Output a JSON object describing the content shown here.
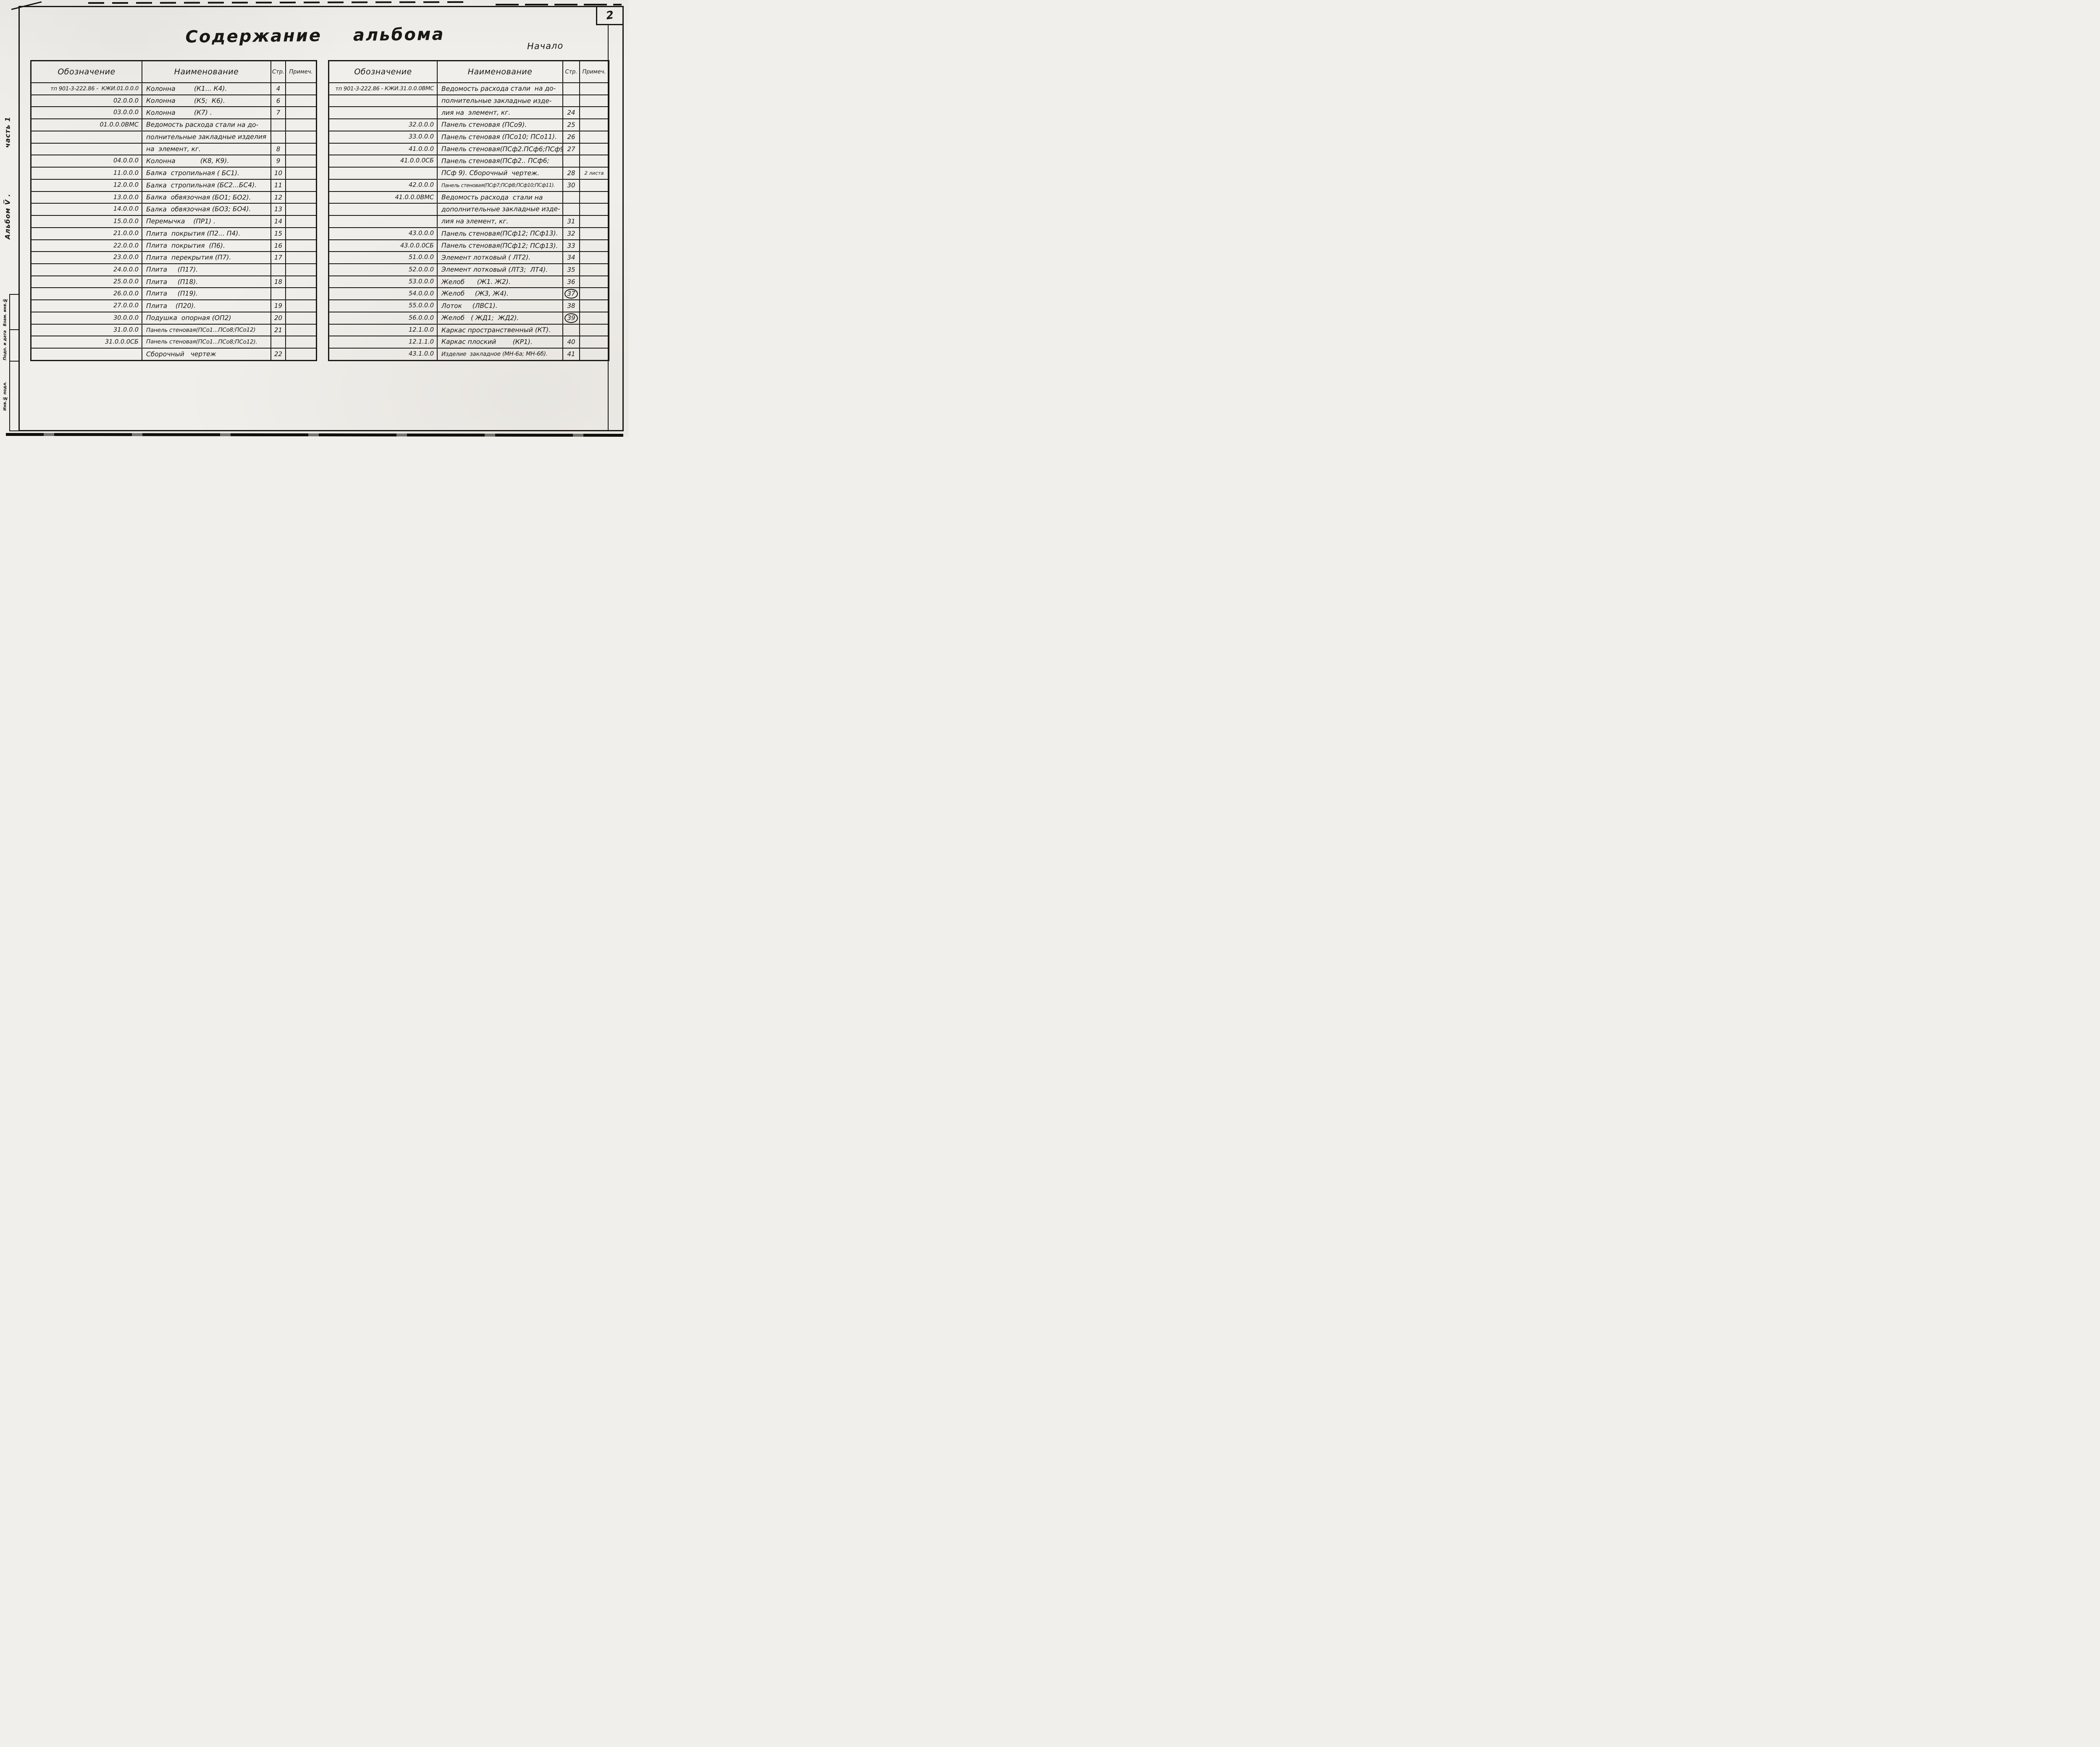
{
  "colors": {
    "ink": "#1b1712",
    "paper": "#f1efeb"
  },
  "page": {
    "corner_number": "2",
    "title": "Содержание альбома",
    "start_label": "Начало"
  },
  "sidebar": {
    "part_label": "часть 1",
    "album_label": "Альбом V̅ .",
    "stamp_labels": [
      "Взам. инв.№",
      "Подп. и дата",
      "Инв.№ подл."
    ]
  },
  "table_headers": {
    "designation": "Обозначение",
    "name": "Наименование",
    "page": "Стр.",
    "note": "Примеч."
  },
  "left_table": {
    "rows": [
      {
        "designation": "тп 901-3-222.86 -  КЖИ.01.0.0.0",
        "name": "Колонна         (К1... К4).",
        "page": "4",
        "note": "",
        "page_circled": false
      },
      {
        "designation": "02.0.0.0",
        "name": "Колонна         (К5;  К6).",
        "page": "6",
        "note": "",
        "page_circled": false
      },
      {
        "designation": "03.0.0.0",
        "name": "Колонна         (К7) .",
        "page": "7",
        "note": "",
        "page_circled": false
      },
      {
        "designation": "01.0.0.0ВМС",
        "name": "Ведомость расхода стали на до-",
        "page": "",
        "note": "",
        "page_circled": false
      },
      {
        "designation": "",
        "name": "полнительные закладные изделия",
        "page": "",
        "note": "",
        "page_circled": false
      },
      {
        "designation": "",
        "name": "на  элемент, кг.",
        "page": "8",
        "note": "",
        "page_circled": false
      },
      {
        "designation": "04.0.0.0",
        "name": "Колонна            (К8, К9).",
        "page": "9",
        "note": "",
        "page_circled": false
      },
      {
        "designation": "11.0.0.0",
        "name": "Балка  стропильная ( БС1).",
        "page": "10",
        "note": "",
        "page_circled": false
      },
      {
        "designation": "12.0.0.0",
        "name": "Балка  стропильная (БС2...БС4).",
        "page": "11",
        "note": "",
        "page_circled": false
      },
      {
        "designation": "13.0.0.0",
        "name": "Балка  обвязочная (БО1; БО2).",
        "page": "12",
        "note": "",
        "page_circled": false
      },
      {
        "designation": "14.0.0.0",
        "name": "Балка  обвязочная (БО3; БО4).",
        "page": "13",
        "note": "",
        "page_circled": false
      },
      {
        "designation": "15.0.0.0",
        "name": "Перемычка    (ПР1) .",
        "page": "14",
        "note": "",
        "page_circled": false
      },
      {
        "designation": "21.0.0.0",
        "name": "Плита  покрытия (П2... П4).",
        "page": "15",
        "note": "",
        "page_circled": false
      },
      {
        "designation": "22.0.0.0",
        "name": "Плита  покрытия  (П6).",
        "page": "16",
        "note": "",
        "page_circled": false
      },
      {
        "designation": "23.0.0.0",
        "name": "Плита  перекрытия (П7).",
        "page": "17",
        "note": "",
        "page_circled": false
      },
      {
        "designation": "24.0.0.0",
        "name": "Плита     (П17).",
        "page": "",
        "note": "",
        "page_circled": false
      },
      {
        "designation": "25.0.0.0",
        "name": "Плита     (П18).",
        "page": "18",
        "note": "",
        "page_circled": false
      },
      {
        "designation": "26.0.0.0",
        "name": "Плита     (П19).",
        "page": "",
        "note": "",
        "page_circled": false
      },
      {
        "designation": "27.0.0.0",
        "name": "Плита    (П20).",
        "page": "19",
        "note": "",
        "page_circled": false
      },
      {
        "designation": "30.0.0.0",
        "name": "Подушка  опорная (ОП2)",
        "page": "20",
        "note": "",
        "page_circled": false
      },
      {
        "designation": "31.0.0.0",
        "name": "Панель стеновая(ПСо1...ПСо8;ПСо12)",
        "page": "21",
        "note": "",
        "page_circled": false
      },
      {
        "designation": "31.0.0.0СБ",
        "name": "Панель стеновая(ПСо1...ПСо8;ПСо12).",
        "page": "",
        "note": "",
        "page_circled": false
      },
      {
        "designation": "",
        "name": "Сборочный   чертеж",
        "page": "22",
        "note": "",
        "page_circled": false
      }
    ]
  },
  "right_table": {
    "rows": [
      {
        "designation": "тп 901-3-222.86 - КЖИ.31.0.0.0ВМС",
        "name": "Ведомость расхода стали  на до-",
        "page": "",
        "note": "",
        "page_circled": false
      },
      {
        "designation": "",
        "name": "полнительные закладные изде-",
        "page": "",
        "note": "",
        "page_circled": false
      },
      {
        "designation": "",
        "name": "лия на  элемент, кг.",
        "page": "24",
        "note": "",
        "page_circled": false
      },
      {
        "designation": "32.0.0.0",
        "name": "Панель стеновая (ПСо9).",
        "page": "25",
        "note": "",
        "page_circled": false
      },
      {
        "designation": "33.0.0.0",
        "name": "Панель стеновая (ПСо10; ПСо11).",
        "page": "26",
        "note": "",
        "page_circled": false
      },
      {
        "designation": "41.0.0.0",
        "name": "Панель стеновая(ПСф2.ПСф6;ПСф9)",
        "page": "27",
        "note": "",
        "page_circled": false
      },
      {
        "designation": "41.0.0.0СБ",
        "name": "Панель стеновая(ПСф2.. ПСф6;",
        "page": "",
        "note": "",
        "page_circled": false
      },
      {
        "designation": "",
        "name": "ПСф 9). Сборочный  чертеж.",
        "page": "28",
        "note": "2 листа",
        "page_circled": false
      },
      {
        "designation": "42.0.0.0",
        "name": "Панель стеновая(ПСф7;ПСф8;ПСф10;ПСф11).",
        "page": "30",
        "note": "",
        "page_circled": false
      },
      {
        "designation": "41.0.0.0ВМС",
        "name": "Ведомость расхода  стали на",
        "page": "",
        "note": "",
        "page_circled": false
      },
      {
        "designation": "",
        "name": "дополнительные закладные изде-",
        "page": "",
        "note": "",
        "page_circled": false
      },
      {
        "designation": "",
        "name": "лия на элемент, кг.",
        "page": "31",
        "note": "",
        "page_circled": false
      },
      {
        "designation": "43.0.0.0",
        "name": "Панель стеновая(ПСф12; ПСф13).",
        "page": "32",
        "note": "",
        "page_circled": false
      },
      {
        "designation": "43.0.0.0СБ",
        "name": "Панель стеновая(ПСф12; ПСф13).",
        "page": "33",
        "note": "",
        "page_circled": false
      },
      {
        "designation": "51.0.0.0",
        "name": "Элемент лотковый ( ЛТ2).",
        "page": "34",
        "note": "",
        "page_circled": false
      },
      {
        "designation": "52.0.0.0",
        "name": "Элемент лотковый (ЛТ3;  ЛТ4).",
        "page": "35",
        "note": "",
        "page_circled": false
      },
      {
        "designation": "53.0.0.0",
        "name": "Желоб      (Ж1. Ж2).",
        "page": "36",
        "note": "",
        "page_circled": false
      },
      {
        "designation": "54.0.0.0",
        "name": "Желоб     (Ж3, Ж4).",
        "page": "37",
        "note": "",
        "page_circled": true
      },
      {
        "designation": "55.0.0.0",
        "name": "Лоток     (ЛВС1).",
        "page": "38",
        "note": "",
        "page_circled": false
      },
      {
        "designation": "56.0.0.0",
        "name": "Желоб   ( ЖД1;  ЖД2).",
        "page": "39",
        "note": "",
        "page_circled": true
      },
      {
        "designation": "12.1.0.0",
        "name": "Каркас пространственный (КТ).",
        "page": "",
        "note": "",
        "page_circled": false
      },
      {
        "designation": "12.1.1.0",
        "name": "Каркас плоский        (КР1).",
        "page": "40",
        "note": "",
        "page_circled": false
      },
      {
        "designation": "43.1.0.0",
        "name": "Изделие  закладное (МН-6а; МН-6б).",
        "page": "41",
        "note": "",
        "page_circled": false
      }
    ]
  }
}
